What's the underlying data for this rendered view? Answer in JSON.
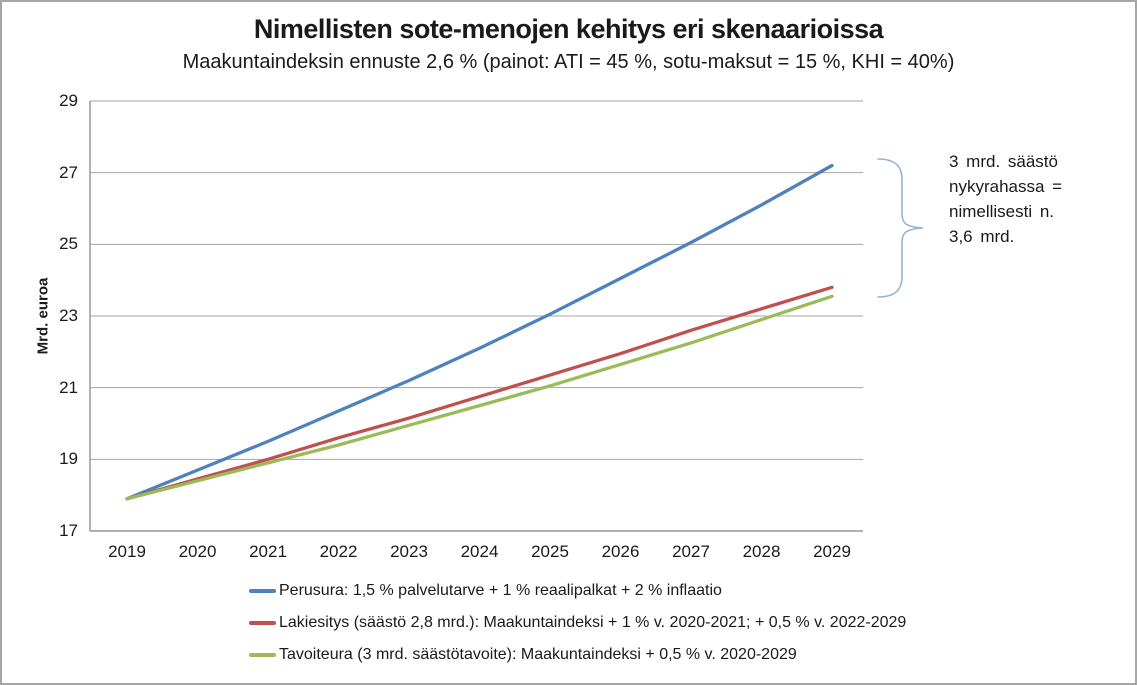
{
  "window": {
    "background_color": "#ffffff",
    "border_color": "#a6a6a6"
  },
  "chart": {
    "title": "Nimellisten sote-menojen kehitys eri skenaarioissa",
    "subtitle": "Maakuntaindeksin ennuste 2,6 % (painot: ATI = 45 %, sotu-maksut = 15 %, KHI = 40%)",
    "y_axis_title": "Mrd. euroa"
  },
  "chart_data": {
    "type": "line",
    "title": "Nimellisten sote-menojen kehitys eri skenaarioissa",
    "subtitle": "Maakuntaindeksin ennuste 2,6 % (painot: ATI = 45 %, sotu-maksut = 15 %, KHI = 40%)",
    "xlabel": "",
    "ylabel": "Mrd. euroa",
    "x": [
      2019,
      2020,
      2021,
      2022,
      2023,
      2024,
      2025,
      2026,
      2027,
      2028,
      2029
    ],
    "x_tick_labels": [
      "2019",
      "2020",
      "2021",
      "2022",
      "2023",
      "2024",
      "2025",
      "2026",
      "2027",
      "2028",
      "2029"
    ],
    "y_ticks": [
      17,
      19,
      21,
      23,
      25,
      27,
      29
    ],
    "ylim": [
      17,
      29
    ],
    "grid": true,
    "legend_position": "bottom-left",
    "series": [
      {
        "name": "Perusura: 1,5 % palvelutarve + 1 % reaalipalkat + 2 % inflaatio",
        "color": "#4F81BD",
        "values": [
          17.9,
          18.7,
          19.5,
          20.35,
          21.2,
          22.1,
          23.05,
          24.05,
          25.05,
          26.1,
          27.2
        ]
      },
      {
        "name": "Lakiesitys (säästö 2,8 mrd.): Maakuntaindeksi + 1 % v. 2020-2021; + 0,5 % v. 2022-2029",
        "color": "#C0504D",
        "values": [
          17.9,
          18.45,
          19.0,
          19.6,
          20.15,
          20.75,
          21.35,
          21.95,
          22.6,
          23.2,
          23.8
        ]
      },
      {
        "name": "Tavoiteura (3 mrd. säästötavoite): Maakuntaindeksi + 0,5 % v. 2020-2029",
        "color": "#9BBB59",
        "values": [
          17.9,
          18.4,
          18.9,
          19.4,
          19.95,
          20.5,
          21.05,
          21.65,
          22.25,
          22.9,
          23.55
        ]
      }
    ],
    "colors": {
      "gridline": "#a6a6a6",
      "axis": "#808080"
    }
  },
  "annotation": {
    "lines": [
      "3 mrd. säästö",
      "nykyrahassa =",
      "nimellisesti n.",
      "3,6 mrd."
    ],
    "brace_color": "#95B3D7"
  }
}
